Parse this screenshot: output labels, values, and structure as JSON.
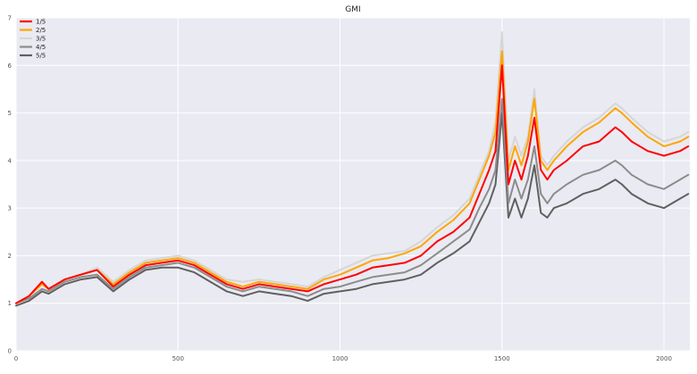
{
  "chart_data": {
    "type": "line",
    "title": "GMI",
    "xlabel": "",
    "ylabel": "",
    "xlim": [
      0,
      2080
    ],
    "ylim": [
      0,
      7
    ],
    "x_ticks": [
      0,
      500,
      1000,
      1500,
      2000
    ],
    "y_ticks": [
      0,
      1,
      2,
      3,
      4,
      5,
      6,
      7
    ],
    "grid": true,
    "legend": "top-left",
    "x": [
      0,
      40,
      80,
      100,
      150,
      200,
      250,
      300,
      350,
      400,
      450,
      500,
      550,
      600,
      650,
      700,
      750,
      800,
      850,
      900,
      950,
      1000,
      1050,
      1100,
      1150,
      1200,
      1250,
      1300,
      1350,
      1400,
      1430,
      1460,
      1480,
      1500,
      1520,
      1540,
      1560,
      1580,
      1600,
      1620,
      1640,
      1660,
      1700,
      1750,
      1800,
      1850,
      1870,
      1900,
      1950,
      2000,
      2050,
      2075
    ],
    "series": [
      {
        "name": "1/5",
        "color": "#ff0000",
        "values": [
          1.0,
          1.15,
          1.45,
          1.3,
          1.5,
          1.6,
          1.7,
          1.35,
          1.6,
          1.8,
          1.85,
          1.9,
          1.8,
          1.6,
          1.4,
          1.3,
          1.4,
          1.35,
          1.3,
          1.25,
          1.4,
          1.5,
          1.6,
          1.75,
          1.8,
          1.85,
          2.0,
          2.3,
          2.5,
          2.8,
          3.3,
          3.8,
          4.2,
          6.0,
          3.5,
          4.0,
          3.6,
          4.1,
          4.9,
          3.8,
          3.6,
          3.8,
          4.0,
          4.3,
          4.4,
          4.7,
          4.6,
          4.4,
          4.2,
          4.1,
          4.2,
          4.3
        ]
      },
      {
        "name": "2/5",
        "color": "#ffa500",
        "values": [
          1.0,
          1.15,
          1.4,
          1.3,
          1.5,
          1.6,
          1.7,
          1.4,
          1.65,
          1.85,
          1.9,
          1.95,
          1.85,
          1.65,
          1.45,
          1.35,
          1.45,
          1.4,
          1.35,
          1.3,
          1.5,
          1.6,
          1.75,
          1.9,
          1.95,
          2.05,
          2.2,
          2.5,
          2.75,
          3.1,
          3.6,
          4.1,
          4.6,
          6.3,
          3.8,
          4.3,
          3.9,
          4.4,
          5.3,
          4.0,
          3.8,
          4.0,
          4.3,
          4.6,
          4.8,
          5.1,
          5.0,
          4.8,
          4.5,
          4.3,
          4.4,
          4.5
        ]
      },
      {
        "name": "3/5",
        "color": "#d6d6d6",
        "values": [
          1.0,
          1.15,
          1.4,
          1.3,
          1.5,
          1.6,
          1.75,
          1.45,
          1.7,
          1.9,
          1.95,
          2.0,
          1.9,
          1.7,
          1.5,
          1.45,
          1.5,
          1.45,
          1.4,
          1.35,
          1.55,
          1.7,
          1.85,
          2.0,
          2.05,
          2.1,
          2.3,
          2.6,
          2.85,
          3.2,
          3.7,
          4.2,
          4.8,
          6.7,
          4.0,
          4.5,
          4.1,
          4.5,
          5.5,
          4.1,
          3.9,
          4.1,
          4.4,
          4.7,
          4.9,
          5.2,
          5.1,
          4.9,
          4.6,
          4.4,
          4.5,
          4.6
        ]
      },
      {
        "name": "4/5",
        "color": "#8c8c8c",
        "values": [
          1.0,
          1.1,
          1.3,
          1.25,
          1.45,
          1.55,
          1.6,
          1.3,
          1.55,
          1.75,
          1.8,
          1.85,
          1.75,
          1.55,
          1.35,
          1.25,
          1.35,
          1.3,
          1.25,
          1.15,
          1.3,
          1.35,
          1.45,
          1.55,
          1.6,
          1.65,
          1.8,
          2.05,
          2.3,
          2.55,
          3.0,
          3.4,
          3.8,
          5.3,
          3.1,
          3.6,
          3.2,
          3.6,
          4.3,
          3.3,
          3.1,
          3.3,
          3.5,
          3.7,
          3.8,
          4.0,
          3.9,
          3.7,
          3.5,
          3.4,
          3.6,
          3.7
        ]
      },
      {
        "name": "5/5",
        "color": "#606060",
        "values": [
          0.95,
          1.05,
          1.25,
          1.2,
          1.4,
          1.5,
          1.55,
          1.25,
          1.5,
          1.7,
          1.75,
          1.75,
          1.65,
          1.45,
          1.25,
          1.15,
          1.25,
          1.2,
          1.15,
          1.05,
          1.2,
          1.25,
          1.3,
          1.4,
          1.45,
          1.5,
          1.6,
          1.85,
          2.05,
          2.3,
          2.7,
          3.1,
          3.5,
          5.0,
          2.8,
          3.2,
          2.8,
          3.2,
          3.9,
          2.9,
          2.8,
          3.0,
          3.1,
          3.3,
          3.4,
          3.6,
          3.5,
          3.3,
          3.1,
          3.0,
          3.2,
          3.3
        ]
      }
    ]
  }
}
